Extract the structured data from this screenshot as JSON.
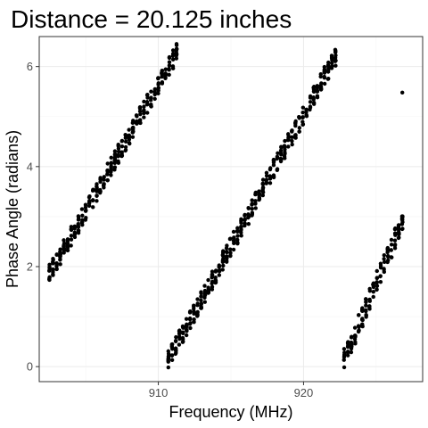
{
  "chart_data": {
    "type": "scatter",
    "title": "Distance = 20.125 inches",
    "xlabel": "Frequency (MHz)",
    "ylabel": "Phase Angle (radians)",
    "xlim": [
      901.8,
      928.2
    ],
    "ylim": [
      -0.3,
      6.6
    ],
    "xticks": [
      910,
      920
    ],
    "yticks": [
      0,
      2,
      4,
      6
    ],
    "grid": true,
    "legend": "none",
    "point_color": "#000000",
    "segments": [
      {
        "x_start": 902.5,
        "x_end": 911.3,
        "y_start": 1.85,
        "y_end": 6.3,
        "spread": 0.38
      },
      {
        "x_start": 910.7,
        "x_end": 922.3,
        "y_start": 0.15,
        "y_end": 6.25,
        "spread": 0.38
      },
      {
        "x_start": 922.8,
        "x_end": 927.0,
        "y_start": 0.15,
        "y_end": 3.05,
        "spread": 0.42
      }
    ],
    "outliers": [
      {
        "x": 926.8,
        "y": 5.48
      }
    ]
  }
}
